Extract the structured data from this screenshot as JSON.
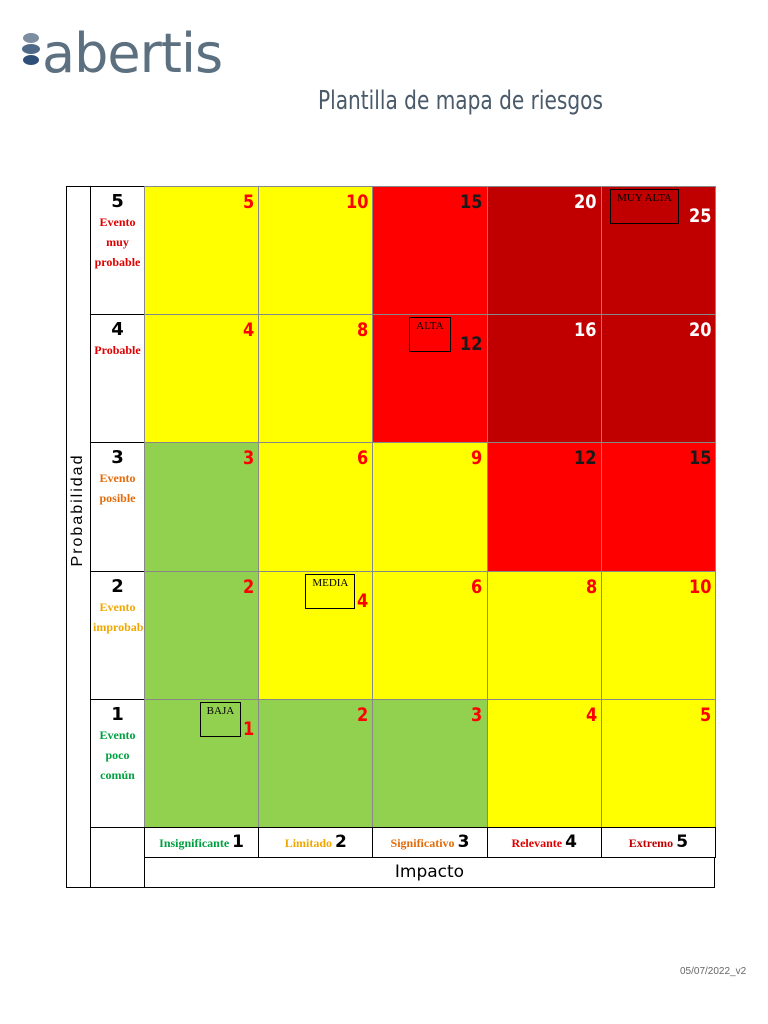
{
  "header": {
    "logo": "abertis",
    "title": "Plantilla de mapa de riesgos"
  },
  "matrix": {
    "y_axis_label": "Probabilidad",
    "x_axis_label": "Impacto",
    "rows": [
      {
        "level": 5,
        "label": "Evento muy probable",
        "label_color": "#e00000",
        "cells": [
          {
            "value": 5,
            "fill": "#ffff00",
            "ink": "#ff0000"
          },
          {
            "value": 10,
            "fill": "#ffff00",
            "ink": "#ff0000"
          },
          {
            "value": 15,
            "fill": "#ff0000",
            "ink": "#1a1a1a"
          },
          {
            "value": 20,
            "fill": "#c00000",
            "ink": "#ffffff"
          },
          {
            "value": 25,
            "fill": "#c00000",
            "ink": "#ffffff",
            "tag": "MUY ALTA"
          }
        ]
      },
      {
        "level": 4,
        "label": "Probable",
        "label_color": "#e00000",
        "cells": [
          {
            "value": 4,
            "fill": "#ffff00",
            "ink": "#ff0000"
          },
          {
            "value": 8,
            "fill": "#ffff00",
            "ink": "#ff0000"
          },
          {
            "value": 12,
            "fill": "#ff0000",
            "ink": "#1a1a1a",
            "tag": "ALTA"
          },
          {
            "value": 16,
            "fill": "#c00000",
            "ink": "#ffffff"
          },
          {
            "value": 20,
            "fill": "#c00000",
            "ink": "#ffffff"
          }
        ]
      },
      {
        "level": 3,
        "label": "Evento posible",
        "label_color": "#e46c0a",
        "cells": [
          {
            "value": 3,
            "fill": "#92d050",
            "ink": "#ff0000"
          },
          {
            "value": 6,
            "fill": "#ffff00",
            "ink": "#ff0000"
          },
          {
            "value": 9,
            "fill": "#ffff00",
            "ink": "#ff0000"
          },
          {
            "value": 12,
            "fill": "#ff0000",
            "ink": "#1a1a1a"
          },
          {
            "value": 15,
            "fill": "#ff0000",
            "ink": "#1a1a1a"
          }
        ]
      },
      {
        "level": 2,
        "label": "Evento improbable",
        "label_color": "#f0a800",
        "cells": [
          {
            "value": 2,
            "fill": "#92d050",
            "ink": "#ff0000"
          },
          {
            "value": 4,
            "fill": "#ffff00",
            "ink": "#ff0000",
            "tag": "MEDIA"
          },
          {
            "value": 6,
            "fill": "#ffff00",
            "ink": "#ff0000"
          },
          {
            "value": 8,
            "fill": "#ffff00",
            "ink": "#ff0000"
          },
          {
            "value": 10,
            "fill": "#ffff00",
            "ink": "#ff0000"
          }
        ]
      },
      {
        "level": 1,
        "label": "Evento poco común",
        "label_color": "#00a040",
        "cells": [
          {
            "value": 1,
            "fill": "#92d050",
            "ink": "#ff0000",
            "tag": "BAJA"
          },
          {
            "value": 2,
            "fill": "#92d050",
            "ink": "#ff0000"
          },
          {
            "value": 3,
            "fill": "#92d050",
            "ink": "#ff0000"
          },
          {
            "value": 4,
            "fill": "#ffff00",
            "ink": "#ff0000"
          },
          {
            "value": 5,
            "fill": "#ffff00",
            "ink": "#ff0000"
          }
        ]
      }
    ],
    "columns": [
      {
        "label": "Insignificante",
        "level": 1,
        "label_color": "#00a040"
      },
      {
        "label": "Limitado",
        "level": 2,
        "label_color": "#f0a800"
      },
      {
        "label": "Significativo",
        "level": 3,
        "label_color": "#e46c0a"
      },
      {
        "label": "Relevante",
        "level": 4,
        "label_color": "#e00000"
      },
      {
        "label": "Extremo",
        "level": 5,
        "label_color": "#c00000"
      }
    ]
  },
  "footer": {
    "version": "05/07/2022_v2"
  }
}
